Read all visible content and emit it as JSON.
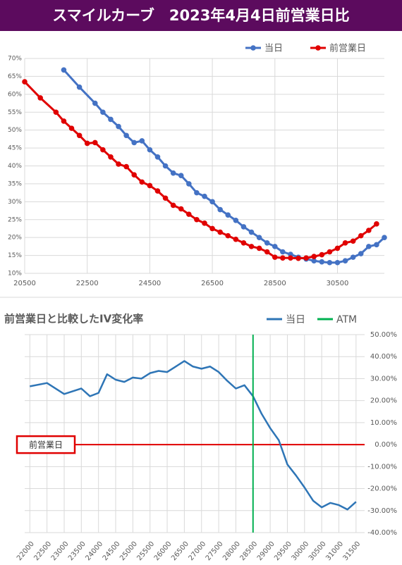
{
  "header": {
    "title": "スマイルカーブ　2023年4月4日前営業日比"
  },
  "chart_data": [
    {
      "type": "line",
      "xlim": [
        20500,
        32000
      ],
      "ylim": [
        10,
        70
      ],
      "xticks": [
        20500,
        22500,
        24500,
        26500,
        28500,
        30500
      ],
      "yticks": [
        {
          "value": 10,
          "label": "10%"
        },
        {
          "value": 15,
          "label": "15%"
        },
        {
          "value": 20,
          "label": "20%"
        },
        {
          "value": 25,
          "label": "25%"
        },
        {
          "value": 30,
          "label": "30%"
        },
        {
          "value": 35,
          "label": "35%"
        },
        {
          "value": 40,
          "label": "40%"
        },
        {
          "value": 45,
          "label": "45%"
        },
        {
          "value": 50,
          "label": "50%"
        },
        {
          "value": 55,
          "label": "55%"
        },
        {
          "value": 60,
          "label": "60%"
        },
        {
          "value": 65,
          "label": "65%"
        },
        {
          "value": 70,
          "label": "70%"
        }
      ],
      "grid": true,
      "legend": "top-right",
      "series": [
        {
          "name": "当日",
          "color": "#4472c4",
          "x": [
            21750,
            22250,
            22750,
            23000,
            23250,
            23500,
            23750,
            24000,
            24250,
            24500,
            24750,
            25000,
            25250,
            25500,
            25750,
            26000,
            26250,
            26500,
            26750,
            27000,
            27250,
            27500,
            27750,
            28000,
            28250,
            28500,
            28750,
            29000,
            29250,
            29500,
            29750,
            30000,
            30250,
            30500,
            30750,
            31000,
            31250,
            31500,
            31750,
            32000
          ],
          "values": [
            66.8,
            62,
            57.5,
            55,
            53,
            51,
            48.5,
            46.5,
            47,
            44.5,
            42.5,
            40,
            38,
            37.3,
            35,
            32.5,
            31.5,
            30,
            27.8,
            26.3,
            24.8,
            23,
            21.5,
            20,
            18.5,
            17.5,
            16,
            15.3,
            14.5,
            14,
            13.5,
            13.2,
            13,
            13,
            13.5,
            14.5,
            15.5,
            17.5,
            18,
            20
          ]
        },
        {
          "name": "前営業日",
          "color": "#e00000",
          "x": [
            20500,
            21000,
            21500,
            21750,
            22000,
            22250,
            22500,
            22750,
            23000,
            23250,
            23500,
            23750,
            24000,
            24250,
            24500,
            24750,
            25000,
            25250,
            25500,
            25750,
            26000,
            26250,
            26500,
            26750,
            27000,
            27250,
            27500,
            27750,
            28000,
            28250,
            28500,
            28750,
            29000,
            29250,
            29500,
            29750,
            30000,
            30250,
            30500,
            30750,
            31000,
            31250,
            31500,
            31750
          ],
          "values": [
            63.5,
            59,
            55,
            52.5,
            50.5,
            48.5,
            46.3,
            46.5,
            44.5,
            42.5,
            40.5,
            39.8,
            37.5,
            35.5,
            34.5,
            33,
            31,
            29,
            28,
            26.5,
            25,
            24,
            22.5,
            21.5,
            20.5,
            19.5,
            18.5,
            17.5,
            17,
            16,
            14.5,
            14.3,
            14.3,
            14.2,
            14.3,
            14.7,
            15.2,
            16,
            17,
            18.5,
            19,
            20.5,
            22,
            23.8
          ]
        }
      ]
    },
    {
      "type": "line",
      "title": "前営業日と比較したIV変化率",
      "xlim": [
        21850,
        31750
      ],
      "ylim": [
        -40,
        50
      ],
      "xticks": [
        22000,
        22500,
        23000,
        23500,
        24000,
        24500,
        25000,
        25500,
        26000,
        26500,
        27000,
        27500,
        28000,
        28500,
        29000,
        29500,
        30000,
        30500,
        31000,
        31500
      ],
      "yticks": [
        {
          "value": 50,
          "label": "50.00%"
        },
        {
          "value": 40,
          "label": "40.00%"
        },
        {
          "value": 30,
          "label": "30.00%"
        },
        {
          "value": 20,
          "label": "20.00%"
        },
        {
          "value": 10,
          "label": "10.00%"
        },
        {
          "value": 0,
          "label": "0.00%"
        },
        {
          "value": -10,
          "label": "-10.00%"
        },
        {
          "value": -20,
          "label": "-20.00%"
        },
        {
          "value": -30,
          "label": "-30.00%"
        },
        {
          "value": -40,
          "label": "-40.00%"
        }
      ],
      "grid": true,
      "legend": "top-right",
      "series": [
        {
          "name": "当日",
          "color": "#2e75b6",
          "x": [
            22000,
            22500,
            23000,
            23500,
            23750,
            24000,
            24250,
            24500,
            24750,
            25000,
            25250,
            25500,
            25750,
            26000,
            26250,
            26500,
            26750,
            27000,
            27250,
            27500,
            27750,
            28000,
            28250,
            28500,
            28750,
            29000,
            29250,
            29500,
            29750,
            30000,
            30250,
            30500,
            30750,
            31000,
            31250,
            31500
          ],
          "values": [
            26.5,
            28,
            23,
            25.5,
            22,
            23.5,
            32,
            29.5,
            28.5,
            30.5,
            30,
            32.5,
            33.5,
            33,
            35.5,
            38,
            35.5,
            34.5,
            35.5,
            33,
            29,
            25.5,
            27,
            22,
            14,
            7.5,
            2,
            -9,
            -14,
            -19.5,
            -25.5,
            -28.5,
            -26.5,
            -27.5,
            -29.5,
            -26
          ]
        },
        {
          "name": "ATM",
          "color": "#00b050",
          "x": 28500
        }
      ],
      "reference_line": {
        "label": "前営業日",
        "value": 0,
        "color": "#e00000"
      }
    }
  ]
}
